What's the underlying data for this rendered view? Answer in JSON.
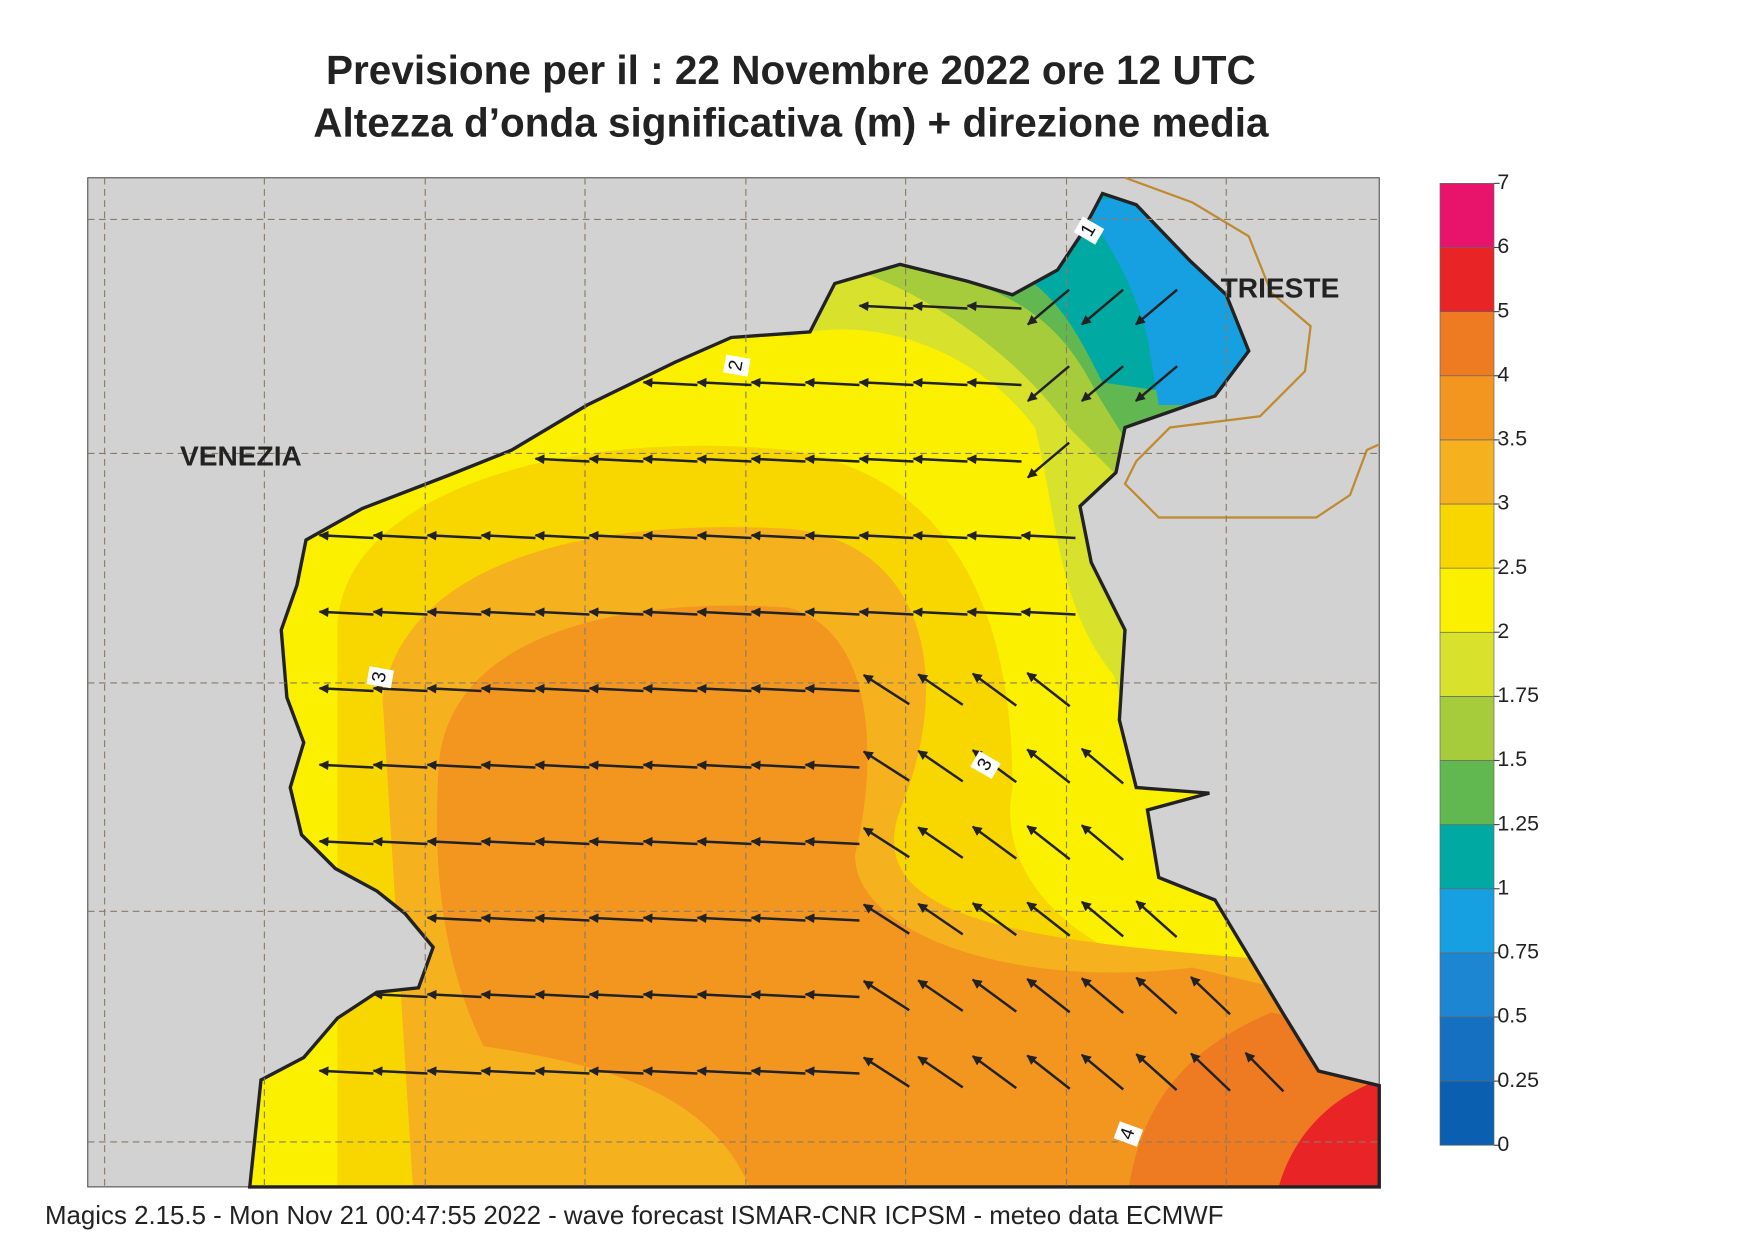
{
  "header": {
    "title_line1": "Previsione per il  :  22 Novembre  2022   ore 12 UTC",
    "title_line2": "Altezza d’onda significativa (m) + direzione media"
  },
  "map": {
    "places": [
      "VENEZIA",
      "TRIESTE"
    ],
    "contour_labels": [
      "1",
      "2",
      "3",
      "3",
      "4"
    ]
  },
  "colorbar": {
    "ticks": [
      0,
      0.25,
      0.5,
      0.75,
      1,
      1.25,
      1.5,
      1.75,
      2,
      2.5,
      3,
      3.5,
      4,
      5,
      6,
      7
    ],
    "colors": [
      "#0b5fb0",
      "#1670c2",
      "#1c86d2",
      "#16a0e2",
      "#00aaa2",
      "#62b850",
      "#a6cc3c",
      "#d8e22c",
      "#faf000",
      "#f8d600",
      "#f6b21e",
      "#f29620",
      "#ee7a22",
      "#e82426",
      "#e8146c"
    ]
  },
  "footer": "Magics 2.15.5 - Mon Nov 21 00:47:55 2022 - wave forecast  ISMAR-CNR  ICPSM - meteo data   ECMWF"
}
